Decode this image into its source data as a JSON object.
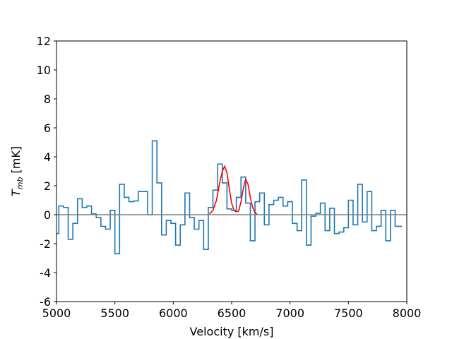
{
  "chart_data": {
    "type": "line",
    "title": "",
    "xlabel": "Velocity [km/s]",
    "ylabel_main": "T",
    "ylabel_sub": "mb",
    "ylabel_unit": " [mK]",
    "xlim": [
      5000,
      8000
    ],
    "ylim": [
      -6,
      12
    ],
    "xticks": [
      5000,
      5500,
      6000,
      6500,
      7000,
      7500,
      8000
    ],
    "yticks": [
      -6,
      -4,
      -2,
      0,
      2,
      4,
      6,
      8,
      10,
      12
    ],
    "grid": false,
    "colors": {
      "spectrum": "#1f77b4",
      "fit": "#ff0000",
      "baseline": "#808080"
    },
    "series": [
      {
        "role": "spectrum",
        "style": "steps-mid",
        "x": [
          5000,
          5040,
          5080,
          5120,
          5160,
          5200,
          5240,
          5280,
          5320,
          5360,
          5400,
          5440,
          5480,
          5520,
          5560,
          5600,
          5640,
          5680,
          5720,
          5760,
          5800,
          5840,
          5880,
          5920,
          5960,
          6000,
          6040,
          6080,
          6120,
          6160,
          6200,
          6240,
          6280,
          6320,
          6360,
          6400,
          6440,
          6480,
          6520,
          6560,
          6600,
          6640,
          6680,
          6720,
          6760,
          6800,
          6840,
          6880,
          6920,
          6960,
          7000,
          7040,
          7080,
          7120,
          7160,
          7200,
          7240,
          7280,
          7320,
          7360,
          7400,
          7440,
          7480,
          7520,
          7560,
          7600,
          7640,
          7680,
          7720,
          7760,
          7800,
          7840,
          7880,
          7920,
          7960
        ],
        "y": [
          -1.3,
          0.6,
          0.5,
          -1.7,
          -0.6,
          1.1,
          0.5,
          0.6,
          0.05,
          -0.2,
          -0.8,
          -1.0,
          0.3,
          -2.7,
          2.1,
          1.2,
          0.9,
          0.95,
          1.6,
          1.6,
          0.0,
          5.1,
          2.2,
          -1.4,
          -0.4,
          -0.6,
          -2.1,
          -0.7,
          1.5,
          -0.2,
          -1.0,
          -0.4,
          -2.4,
          0.5,
          1.7,
          3.5,
          2.2,
          0.4,
          0.3,
          1.2,
          2.6,
          0.8,
          -1.8,
          0.9,
          1.5,
          -0.7,
          0.7,
          1.0,
          1.2,
          0.6,
          0.9,
          -0.6,
          -1.1,
          2.4,
          -2.1,
          -0.1,
          0.1,
          0.8,
          -1.1,
          0.45,
          -1.3,
          -1.2,
          -0.9,
          1.0,
          -0.7,
          2.1,
          -0.5,
          1.6,
          -1.1,
          -0.8,
          0.3,
          -1.8,
          0.3,
          -0.8,
          -0.8
        ]
      },
      {
        "role": "gaussian-fit",
        "x": [
          6310,
          6340,
          6370,
          6400,
          6420,
          6440,
          6460,
          6480,
          6500,
          6520,
          6540,
          6560,
          6580,
          6600,
          6620,
          6640,
          6660,
          6680,
          6700,
          6720
        ],
        "y": [
          0.05,
          0.3,
          1.0,
          2.3,
          3.0,
          3.35,
          2.9,
          1.8,
          0.8,
          0.3,
          0.2,
          0.25,
          0.9,
          1.8,
          2.45,
          2.1,
          1.2,
          0.5,
          0.15,
          0.02
        ]
      },
      {
        "role": "zero-baseline",
        "x": [
          5000,
          8000
        ],
        "y": [
          0,
          0
        ]
      }
    ]
  }
}
